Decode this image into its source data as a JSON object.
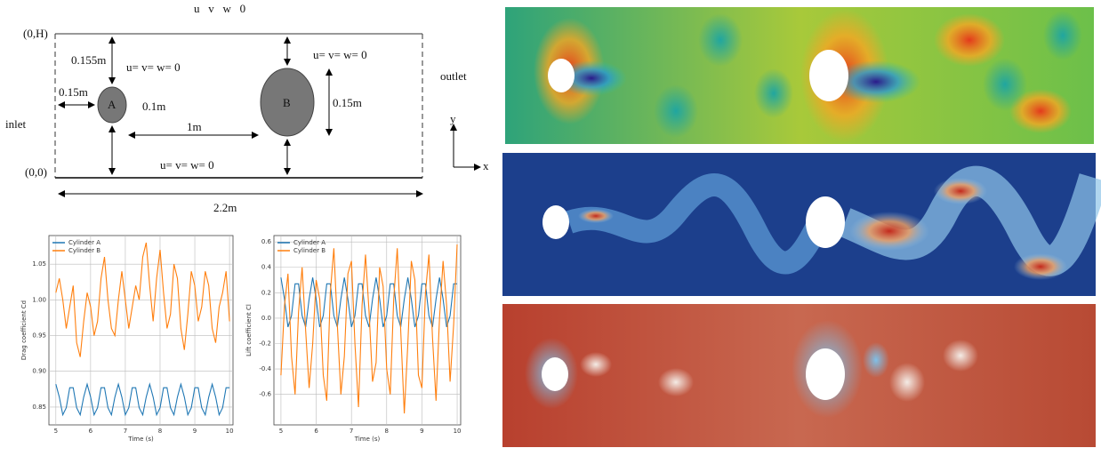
{
  "diagram": {
    "top_bc": "u   v   w   0",
    "origin_top": "(0,H)",
    "gap_top": "0.155m",
    "bc_a": "u= v= w= 0",
    "inlet_gap": "0.15m",
    "cyl_a": "A",
    "dia_a": "0.1m",
    "spacing": "1m",
    "cyl_b": "B",
    "bc_b": "u= v= w= 0",
    "dia_b": "0.15m",
    "outlet": "outlet",
    "inlet": "inlet",
    "origin": "(0,0)",
    "bottom_bc": "u= v= w= 0",
    "length": "2.2m",
    "axis_y": "y",
    "axis_x": "x"
  },
  "chart_data": [
    {
      "type": "line",
      "xlabel": "Time (s)",
      "ylabel": "Drag coefficient Cd",
      "grid": true,
      "legend": "upper left",
      "x": [
        5,
        5.1,
        5.2,
        5.3,
        5.4,
        5.5,
        5.6,
        5.7,
        5.8,
        5.9,
        6,
        6.1,
        6.2,
        6.3,
        6.4,
        6.5,
        6.6,
        6.7,
        6.8,
        6.9,
        7,
        7.1,
        7.2,
        7.3,
        7.4,
        7.5,
        7.6,
        7.7,
        7.8,
        7.9,
        8,
        8.1,
        8.2,
        8.3,
        8.4,
        8.5,
        8.6,
        8.7,
        8.8,
        8.9,
        9,
        9.1,
        9.2,
        9.3,
        9.4,
        9.5,
        9.6,
        9.7,
        9.8,
        9.9,
        10
      ],
      "xlim": [
        4.8,
        10.1
      ],
      "xticks": [
        5,
        6,
        7,
        8,
        9,
        10
      ],
      "ylim": [
        0.825,
        1.09
      ],
      "yticks": [
        0.85,
        {
          "value": 0.9,
          "label": "0.90"
        },
        0.95,
        {
          "value": 1,
          "label": "1.00"
        },
        1.05
      ],
      "series": [
        {
          "name": "Cylinder A",
          "color": "#1f77b4",
          "values": [
            0.882,
            0.864,
            0.839,
            0.849,
            0.877,
            0.877,
            0.849,
            0.839,
            0.864,
            0.882,
            0.864,
            0.839,
            0.849,
            0.877,
            0.877,
            0.849,
            0.839,
            0.864,
            0.882,
            0.864,
            0.839,
            0.849,
            0.877,
            0.877,
            0.849,
            0.839,
            0.864,
            0.882,
            0.864,
            0.839,
            0.849,
            0.877,
            0.877,
            0.849,
            0.839,
            0.864,
            0.882,
            0.864,
            0.839,
            0.849,
            0.877,
            0.877,
            0.849,
            0.839,
            0.864,
            0.882,
            0.864,
            0.839,
            0.849,
            0.877,
            0.877
          ]
        },
        {
          "name": "Cylinder B",
          "color": "#ff7f0e",
          "values": [
            1.01,
            1.03,
            1.0,
            0.96,
            0.99,
            1.02,
            0.94,
            0.92,
            0.97,
            1.01,
            0.99,
            0.95,
            0.97,
            1.03,
            1.06,
            1.0,
            0.96,
            0.95,
            1.0,
            1.04,
            1.0,
            0.96,
            0.99,
            1.02,
            1.0,
            1.06,
            1.08,
            1.02,
            0.97,
            1.03,
            1.07,
            1.01,
            0.96,
            0.98,
            1.05,
            1.03,
            0.96,
            0.93,
            0.98,
            1.04,
            1.02,
            0.97,
            0.99,
            1.04,
            1.02,
            0.96,
            0.94,
            0.99,
            1.01,
            1.04,
            0.97
          ]
        }
      ]
    },
    {
      "type": "line",
      "xlabel": "Time (s)",
      "ylabel": "Lift coefficient Cl",
      "grid": true,
      "legend": "upper left",
      "x": [
        5,
        5.1,
        5.2,
        5.3,
        5.4,
        5.5,
        5.6,
        5.7,
        5.8,
        5.9,
        6,
        6.1,
        6.2,
        6.3,
        6.4,
        6.5,
        6.6,
        6.7,
        6.8,
        6.9,
        7,
        7.1,
        7.2,
        7.3,
        7.4,
        7.5,
        7.6,
        7.7,
        7.8,
        7.9,
        8,
        8.1,
        8.2,
        8.3,
        8.4,
        8.5,
        8.6,
        8.7,
        8.8,
        8.9,
        9,
        9.1,
        9.2,
        9.3,
        9.4,
        9.5,
        9.6,
        9.7,
        9.8,
        9.9,
        10
      ],
      "xlim": [
        4.8,
        10.1
      ],
      "xticks": [
        5,
        6,
        7,
        8,
        9,
        10
      ],
      "ylim": [
        -0.84,
        0.65
      ],
      "yticks": [
        -0.6,
        -0.4,
        -0.2,
        {
          "value": 0,
          "label": "0.0"
        },
        0.2,
        0.4,
        0.6
      ],
      "series": [
        {
          "name": "Cylinder A",
          "color": "#1f77b4",
          "values": [
            0.32,
            0.15,
            -0.07,
            0.02,
            0.27,
            0.27,
            0.02,
            -0.07,
            0.15,
            0.32,
            0.15,
            -0.07,
            0.02,
            0.27,
            0.27,
            0.02,
            -0.07,
            0.15,
            0.32,
            0.15,
            -0.07,
            0.02,
            0.27,
            0.27,
            0.02,
            -0.07,
            0.15,
            0.32,
            0.15,
            -0.07,
            0.02,
            0.27,
            0.27,
            0.02,
            -0.07,
            0.15,
            0.32,
            0.15,
            -0.07,
            0.02,
            0.27,
            0.27,
            0.02,
            -0.07,
            0.15,
            0.32,
            0.15,
            -0.07,
            0.02,
            0.27,
            0.27
          ]
        },
        {
          "name": "Cylinder B",
          "color": "#ff7f0e",
          "values": [
            -0.45,
            0.1,
            0.35,
            -0.3,
            -0.6,
            0.05,
            0.4,
            -0.1,
            -0.55,
            -0.2,
            0.3,
            0.15,
            -0.45,
            -0.65,
            0.2,
            0.55,
            -0.05,
            -0.6,
            -0.3,
            0.35,
            0.45,
            -0.2,
            -0.7,
            0.1,
            0.5,
            0.05,
            -0.5,
            -0.35,
            0.4,
            0.25,
            -0.4,
            -0.6,
            0.15,
            0.55,
            -0.1,
            -0.75,
            -0.2,
            0.45,
            0.3,
            -0.45,
            -0.55,
            0.2,
            0.5,
            -0.15,
            -0.65,
            0.0,
            0.45,
            0.1,
            -0.5,
            -0.05,
            0.58
          ]
        }
      ]
    }
  ]
}
